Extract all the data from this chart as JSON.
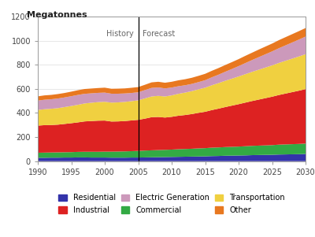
{
  "years": [
    1990,
    1991,
    1992,
    1993,
    1994,
    1995,
    1996,
    1997,
    1998,
    1999,
    2000,
    2001,
    2002,
    2003,
    2004,
    2005,
    2006,
    2007,
    2008,
    2009,
    2010,
    2011,
    2012,
    2013,
    2014,
    2015,
    2016,
    2017,
    2018,
    2019,
    2020,
    2021,
    2022,
    2023,
    2024,
    2025,
    2026,
    2027,
    2028,
    2029,
    2030
  ],
  "residential": [
    28,
    28,
    29,
    29,
    30,
    30,
    31,
    31,
    30,
    30,
    30,
    29,
    29,
    29,
    30,
    30,
    31,
    32,
    33,
    34,
    35,
    36,
    37,
    38,
    39,
    40,
    42,
    43,
    45,
    46,
    47,
    48,
    50,
    51,
    52,
    53,
    55,
    56,
    57,
    58,
    60
  ],
  "commercial": [
    42,
    43,
    43,
    44,
    44,
    45,
    46,
    47,
    48,
    48,
    49,
    50,
    51,
    52,
    53,
    55,
    57,
    58,
    59,
    60,
    61,
    63,
    64,
    65,
    67,
    68,
    70,
    71,
    72,
    73,
    74,
    76,
    77,
    78,
    79,
    80,
    82,
    83,
    84,
    85,
    86
  ],
  "industrial": [
    225,
    228,
    228,
    230,
    235,
    240,
    245,
    252,
    255,
    258,
    258,
    250,
    250,
    252,
    255,
    258,
    265,
    275,
    275,
    268,
    272,
    278,
    282,
    288,
    295,
    302,
    312,
    322,
    332,
    342,
    352,
    362,
    372,
    382,
    392,
    402,
    412,
    422,
    432,
    442,
    452
  ],
  "transportation": [
    130,
    132,
    135,
    137,
    140,
    143,
    146,
    149,
    152,
    154,
    156,
    157,
    158,
    159,
    160,
    162,
    168,
    172,
    175,
    175,
    178,
    182,
    186,
    190,
    195,
    200,
    206,
    212,
    218,
    224,
    230,
    236,
    242,
    248,
    254,
    260,
    266,
    272,
    278,
    284,
    290
  ],
  "electric_generation": [
    78,
    79,
    79,
    80,
    80,
    81,
    82,
    80,
    78,
    77,
    76,
    74,
    72,
    70,
    68,
    67,
    69,
    71,
    70,
    67,
    65,
    63,
    61,
    60,
    60,
    62,
    66,
    70,
    75,
    80,
    86,
    92,
    98,
    104,
    110,
    116,
    122,
    128,
    134,
    140,
    146
  ],
  "other": [
    35,
    36,
    36,
    37,
    37,
    38,
    39,
    40,
    40,
    40,
    41,
    41,
    42,
    42,
    43,
    43,
    44,
    46,
    47,
    47,
    48,
    49,
    50,
    51,
    52,
    53,
    54,
    55,
    56,
    57,
    58,
    60,
    61,
    63,
    64,
    65,
    67,
    68,
    69,
    70,
    71
  ],
  "colors": {
    "residential": "#3333aa",
    "commercial": "#33aa44",
    "industrial": "#dd2222",
    "transportation": "#f0d040",
    "electric_generation": "#cc99bb",
    "other": "#e87820"
  },
  "ylim": [
    0,
    1200
  ],
  "xlim": [
    1990,
    2030
  ],
  "yticks": [
    0,
    200,
    400,
    600,
    800,
    1000,
    1200
  ],
  "xticks": [
    1990,
    1995,
    2000,
    2005,
    2010,
    2015,
    2020,
    2025,
    2030
  ],
  "ylabel": "Megatonnes",
  "history_label": "History",
  "forecast_label": "Forecast",
  "divider_year": 2005,
  "legend": [
    {
      "label": "Residential",
      "color": "#3333aa"
    },
    {
      "label": "Industrial",
      "color": "#dd2222"
    },
    {
      "label": "Electric Generation",
      "color": "#cc99bb"
    },
    {
      "label": "Commercial",
      "color": "#33aa44"
    },
    {
      "label": "Transportation",
      "color": "#f0d040"
    },
    {
      "label": "Other",
      "color": "#e87820"
    }
  ],
  "background_color": "#ffffff"
}
